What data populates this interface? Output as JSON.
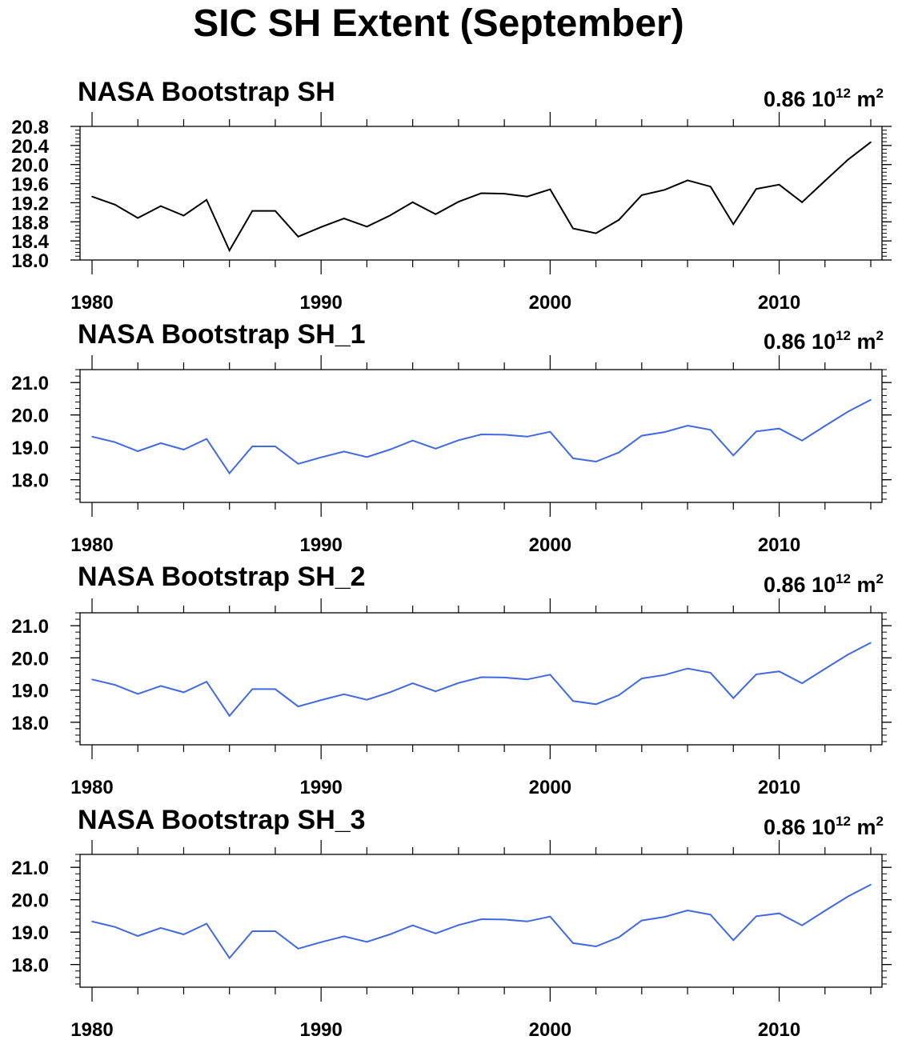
{
  "title": "SIC SH Extent (September)",
  "chart_data": [
    {
      "type": "line",
      "title": "NASA Bootstrap SH",
      "annotation": {
        "value": "0.86 10",
        "exponent": "12",
        "unit": " m",
        "unit_exponent": "2"
      },
      "line_color": "#000000",
      "xlim": [
        1980,
        2014
      ],
      "ylim": [
        18.0,
        20.8
      ],
      "yticks": [
        18.0,
        18.4,
        18.8,
        19.2,
        19.6,
        20.0,
        20.4,
        20.8
      ],
      "ytick_labels": [
        "18.0",
        "18.4",
        "18.8",
        "19.2",
        "19.6",
        "20.0",
        "20.4",
        "20.8"
      ],
      "xticks": [
        1980,
        1990,
        2000,
        2010
      ],
      "xtick_labels": [
        "1980",
        "1990",
        "2000",
        "2010"
      ],
      "x": [
        1980,
        1981,
        1982,
        1983,
        1984,
        1985,
        1986,
        1987,
        1988,
        1989,
        1990,
        1991,
        1992,
        1993,
        1994,
        1995,
        1996,
        1997,
        1998,
        1999,
        2000,
        2001,
        2002,
        2003,
        2004,
        2005,
        2006,
        2007,
        2008,
        2009,
        2010,
        2011,
        2012,
        2013,
        2014
      ],
      "y": [
        19.33,
        19.16,
        18.88,
        19.13,
        18.93,
        19.26,
        18.2,
        19.03,
        19.03,
        18.49,
        18.69,
        18.87,
        18.7,
        18.93,
        19.21,
        18.96,
        19.22,
        19.4,
        19.39,
        19.33,
        19.48,
        18.66,
        18.56,
        18.84,
        19.36,
        19.47,
        19.67,
        19.54,
        18.75,
        19.49,
        19.58,
        19.21,
        19.66,
        20.1,
        20.47
      ]
    },
    {
      "type": "line",
      "title": "NASA Bootstrap SH_1",
      "annotation": {
        "value": "0.86 10",
        "exponent": "12",
        "unit": " m",
        "unit_exponent": "2"
      },
      "line_color": "#4169e1",
      "xlim": [
        1980,
        2014
      ],
      "ylim": [
        17.3,
        21.4
      ],
      "yticks": [
        18.0,
        19.0,
        20.0,
        21.0
      ],
      "ytick_labels": [
        "18.0",
        "19.0",
        "20.0",
        "21.0"
      ],
      "xticks": [
        1980,
        1990,
        2000,
        2010
      ],
      "xtick_labels": [
        "1980",
        "1990",
        "2000",
        "2010"
      ],
      "x": [
        1980,
        1981,
        1982,
        1983,
        1984,
        1985,
        1986,
        1987,
        1988,
        1989,
        1990,
        1991,
        1992,
        1993,
        1994,
        1995,
        1996,
        1997,
        1998,
        1999,
        2000,
        2001,
        2002,
        2003,
        2004,
        2005,
        2006,
        2007,
        2008,
        2009,
        2010,
        2011,
        2012,
        2013,
        2014
      ],
      "y": [
        19.33,
        19.16,
        18.88,
        19.13,
        18.93,
        19.26,
        18.2,
        19.03,
        19.03,
        18.49,
        18.69,
        18.87,
        18.7,
        18.93,
        19.21,
        18.96,
        19.22,
        19.4,
        19.39,
        19.33,
        19.48,
        18.66,
        18.56,
        18.84,
        19.36,
        19.47,
        19.67,
        19.54,
        18.75,
        19.49,
        19.58,
        19.21,
        19.66,
        20.1,
        20.47
      ]
    },
    {
      "type": "line",
      "title": "NASA Bootstrap SH_2",
      "annotation": {
        "value": "0.86 10",
        "exponent": "12",
        "unit": " m",
        "unit_exponent": "2"
      },
      "line_color": "#4169e1",
      "xlim": [
        1980,
        2014
      ],
      "ylim": [
        17.3,
        21.4
      ],
      "yticks": [
        18.0,
        19.0,
        20.0,
        21.0
      ],
      "ytick_labels": [
        "18.0",
        "19.0",
        "20.0",
        "21.0"
      ],
      "xticks": [
        1980,
        1990,
        2000,
        2010
      ],
      "xtick_labels": [
        "1980",
        "1990",
        "2000",
        "2010"
      ],
      "x": [
        1980,
        1981,
        1982,
        1983,
        1984,
        1985,
        1986,
        1987,
        1988,
        1989,
        1990,
        1991,
        1992,
        1993,
        1994,
        1995,
        1996,
        1997,
        1998,
        1999,
        2000,
        2001,
        2002,
        2003,
        2004,
        2005,
        2006,
        2007,
        2008,
        2009,
        2010,
        2011,
        2012,
        2013,
        2014
      ],
      "y": [
        19.33,
        19.16,
        18.88,
        19.13,
        18.93,
        19.26,
        18.2,
        19.03,
        19.03,
        18.49,
        18.69,
        18.87,
        18.7,
        18.93,
        19.21,
        18.96,
        19.22,
        19.4,
        19.39,
        19.33,
        19.48,
        18.66,
        18.56,
        18.84,
        19.36,
        19.47,
        19.67,
        19.54,
        18.75,
        19.49,
        19.58,
        19.21,
        19.66,
        20.1,
        20.47
      ]
    },
    {
      "type": "line",
      "title": "NASA Bootstrap SH_3",
      "annotation": {
        "value": "0.86 10",
        "exponent": "12",
        "unit": " m",
        "unit_exponent": "2"
      },
      "line_color": "#4169e1",
      "xlim": [
        1980,
        2014
      ],
      "ylim": [
        17.3,
        21.4
      ],
      "yticks": [
        18.0,
        19.0,
        20.0,
        21.0
      ],
      "ytick_labels": [
        "18.0",
        "19.0",
        "20.0",
        "21.0"
      ],
      "xticks": [
        1980,
        1990,
        2000,
        2010
      ],
      "xtick_labels": [
        "1980",
        "1990",
        "2000",
        "2010"
      ],
      "x": [
        1980,
        1981,
        1982,
        1983,
        1984,
        1985,
        1986,
        1987,
        1988,
        1989,
        1990,
        1991,
        1992,
        1993,
        1994,
        1995,
        1996,
        1997,
        1998,
        1999,
        2000,
        2001,
        2002,
        2003,
        2004,
        2005,
        2006,
        2007,
        2008,
        2009,
        2010,
        2011,
        2012,
        2013,
        2014
      ],
      "y": [
        19.33,
        19.16,
        18.88,
        19.13,
        18.93,
        19.26,
        18.2,
        19.03,
        19.03,
        18.49,
        18.69,
        18.87,
        18.7,
        18.93,
        19.21,
        18.96,
        19.22,
        19.4,
        19.39,
        19.33,
        19.48,
        18.66,
        18.56,
        18.84,
        19.36,
        19.47,
        19.67,
        19.54,
        18.75,
        19.49,
        19.58,
        19.21,
        19.66,
        20.1,
        20.47
      ]
    }
  ]
}
